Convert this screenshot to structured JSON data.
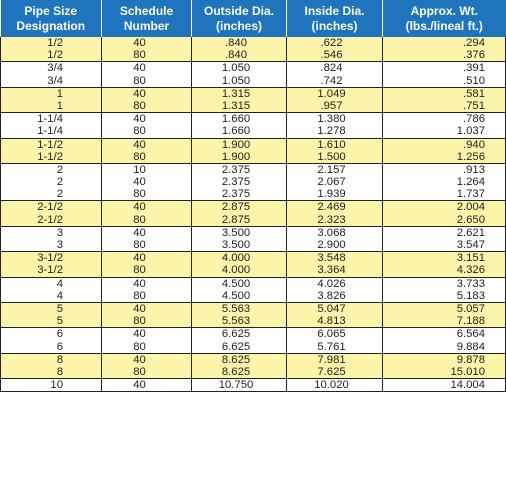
{
  "headers": [
    [
      "Pipe Size",
      "Designation"
    ],
    [
      "Schedule",
      "Number"
    ],
    [
      "Outside Dia.",
      "(inches)"
    ],
    [
      "Inside Dia.",
      "(inches)"
    ],
    [
      "Approx. Wt.",
      "(lbs./lineal ft.)"
    ]
  ],
  "groups": [
    {
      "size": [
        "1/2",
        "1/2"
      ],
      "schedule": [
        "40",
        "80"
      ],
      "outside_dia": [
        ".840",
        ".840"
      ],
      "inside_dia": [
        ".622",
        ".546"
      ],
      "weight": [
        ".294",
        ".376"
      ],
      "highlight": true
    },
    {
      "size": [
        "3/4",
        "3/4"
      ],
      "schedule": [
        "40",
        "80"
      ],
      "outside_dia": [
        "1.050",
        "1.050"
      ],
      "inside_dia": [
        ".824",
        ".742"
      ],
      "weight": [
        ".391",
        ".510"
      ],
      "highlight": false
    },
    {
      "size": [
        "1",
        "1"
      ],
      "schedule": [
        "40",
        "80"
      ],
      "outside_dia": [
        "1.315",
        "1.315"
      ],
      "inside_dia": [
        "1.049",
        ".957"
      ],
      "weight": [
        ".581",
        ".751"
      ],
      "highlight": true
    },
    {
      "size": [
        "1-1/4",
        "1-1/4"
      ],
      "schedule": [
        "40",
        "80"
      ],
      "outside_dia": [
        "1.660",
        "1.660"
      ],
      "inside_dia": [
        "1.380",
        "1.278"
      ],
      "weight": [
        ".786",
        "1.037"
      ],
      "highlight": false
    },
    {
      "size": [
        "1-1/2",
        "1-1/2"
      ],
      "schedule": [
        "40",
        "80"
      ],
      "outside_dia": [
        "1.900",
        "1.900"
      ],
      "inside_dia": [
        "1.610",
        "1.500"
      ],
      "weight": [
        ".940",
        "1.256"
      ],
      "highlight": true
    },
    {
      "size": [
        "2",
        "2",
        "2"
      ],
      "schedule": [
        "10",
        "40",
        "80"
      ],
      "outside_dia": [
        "2.375",
        "2.375",
        "2.375"
      ],
      "inside_dia": [
        "2.157",
        "2.067",
        "1.939"
      ],
      "weight": [
        ".913",
        "1.264",
        "1.737"
      ],
      "highlight": false
    },
    {
      "size": [
        "2-1/2",
        "2-1/2"
      ],
      "schedule": [
        "40",
        "80"
      ],
      "outside_dia": [
        "2.875",
        "2.875"
      ],
      "inside_dia": [
        "2.469",
        "2.323"
      ],
      "weight": [
        "2.004",
        "2.650"
      ],
      "highlight": true
    },
    {
      "size": [
        "3",
        "3"
      ],
      "schedule": [
        "40",
        "80"
      ],
      "outside_dia": [
        "3.500",
        "3.500"
      ],
      "inside_dia": [
        "3.068",
        "2.900"
      ],
      "weight": [
        "2.621",
        "3.547"
      ],
      "highlight": false
    },
    {
      "size": [
        "3-1/2",
        "3-1/2"
      ],
      "schedule": [
        "40",
        "80"
      ],
      "outside_dia": [
        "4.000",
        "4.000"
      ],
      "inside_dia": [
        "3.548",
        "3.364"
      ],
      "weight": [
        "3.151",
        "4.326"
      ],
      "highlight": true
    },
    {
      "size": [
        "4",
        "4"
      ],
      "schedule": [
        "40",
        "80"
      ],
      "outside_dia": [
        "4.500",
        "4.500"
      ],
      "inside_dia": [
        "4.026",
        "3.826"
      ],
      "weight": [
        "3.733",
        "5.183"
      ],
      "highlight": false
    },
    {
      "size": [
        "5",
        "5"
      ],
      "schedule": [
        "40",
        "80"
      ],
      "outside_dia": [
        "5.563",
        "5.563"
      ],
      "inside_dia": [
        "5.047",
        "4.813"
      ],
      "weight": [
        "5.057",
        "7.188"
      ],
      "highlight": true
    },
    {
      "size": [
        "6",
        "6"
      ],
      "schedule": [
        "40",
        "80"
      ],
      "outside_dia": [
        "6.625",
        "6.625"
      ],
      "inside_dia": [
        "6.065",
        "5.761"
      ],
      "weight": [
        "6.564",
        "9.884"
      ],
      "highlight": false
    },
    {
      "size": [
        "8",
        "8"
      ],
      "schedule": [
        "40",
        "80"
      ],
      "outside_dia": [
        "8.625",
        "8.625"
      ],
      "inside_dia": [
        "7.981",
        "7.625"
      ],
      "weight": [
        "9.878",
        "15.010"
      ],
      "highlight": true
    },
    {
      "size": [
        "10"
      ],
      "schedule": [
        "40"
      ],
      "outside_dia": [
        "10.750"
      ],
      "inside_dia": [
        "10.020"
      ],
      "weight": [
        "14.004"
      ],
      "highlight": false
    }
  ]
}
